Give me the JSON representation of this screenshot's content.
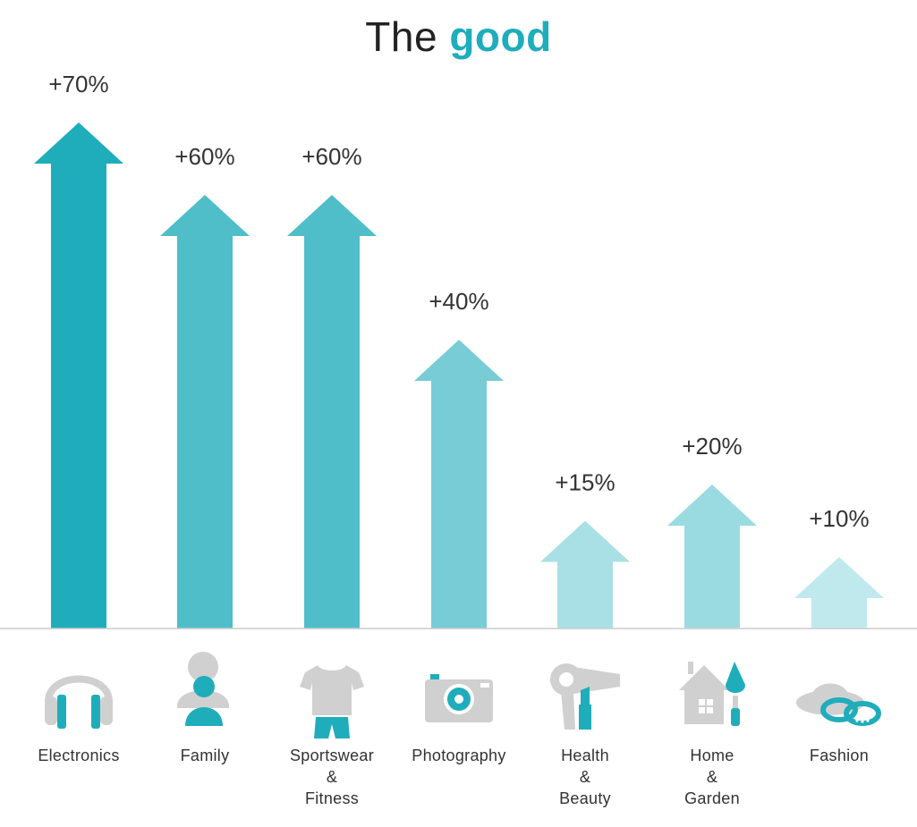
{
  "title": {
    "prefix": "The",
    "highlight": "good"
  },
  "chart_data": {
    "type": "bar",
    "title": "The good",
    "categories": [
      "Electronics",
      "Family",
      "Sportswear & Fitness",
      "Photography",
      "Health & Beauty",
      "Home & Garden",
      "Fashion"
    ],
    "category_lines": [
      [
        "Electronics"
      ],
      [
        "Family"
      ],
      [
        "Sportswear",
        "&",
        "Fitness"
      ],
      [
        "Photography"
      ],
      [
        "Health",
        "&",
        "Beauty"
      ],
      [
        "Home",
        "&",
        "Garden"
      ],
      [
        "Fashion"
      ]
    ],
    "values": [
      70,
      60,
      60,
      40,
      15,
      20,
      10
    ],
    "value_labels": [
      "+70%",
      "+60%",
      "+60%",
      "+40%",
      "+15%",
      "+20%",
      "+10%"
    ],
    "ylim": [
      0,
      70
    ],
    "grid": false,
    "mark_style": "arrows",
    "bar_colors": [
      "#1fadbb",
      "#4fbec9",
      "#4fbec9",
      "#78ccd6",
      "#a9e0e6",
      "#9adbe2",
      "#c0e9ee"
    ],
    "icons": [
      "headphones-icon",
      "person-icon",
      "shirt-shorts-icon",
      "camera-icon",
      "hairdryer-lipstick-icon",
      "house-trowel-icon",
      "hat-bracelet-icon"
    ]
  },
  "colors": {
    "accent": "#1fadbb",
    "icon_gray": "#d0d0d0",
    "baseline": "#cccccc"
  }
}
